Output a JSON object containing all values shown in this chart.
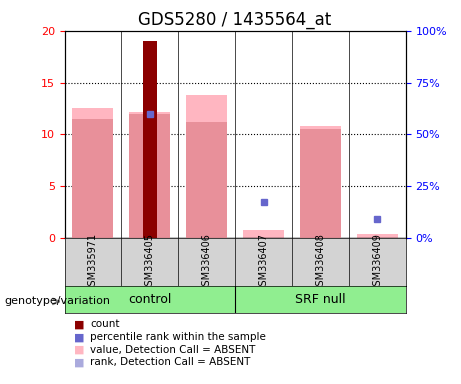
{
  "title": "GDS5280 / 1435564_at",
  "samples": [
    "GSM335971",
    "GSM336405",
    "GSM336406",
    "GSM336407",
    "GSM336408",
    "GSM336409"
  ],
  "groups": {
    "control": [
      "GSM335971",
      "GSM336405",
      "GSM336406"
    ],
    "SRF null": [
      "GSM336407",
      "GSM336408",
      "GSM336409"
    ]
  },
  "group_colors": {
    "control": "#90EE90",
    "SRF null": "#90EE90"
  },
  "ylim_left": [
    0,
    20
  ],
  "ylim_right": [
    0,
    100
  ],
  "yticks_left": [
    0,
    5,
    10,
    15,
    20
  ],
  "yticks_right": [
    0,
    25,
    50,
    75,
    100
  ],
  "ytick_labels_left": [
    "0",
    "5",
    "10",
    "15",
    "20"
  ],
  "ytick_labels_right": [
    "0%",
    "25%",
    "50%",
    "75%",
    "100%"
  ],
  "pink_bar_values": [
    12.5,
    12.2,
    13.8,
    0.8,
    10.8,
    0.4
  ],
  "pink_rank_values": [
    11.5,
    12.0,
    11.2,
    null,
    10.5,
    null
  ],
  "red_bar_values": [
    null,
    19.0,
    null,
    null,
    null,
    null
  ],
  "blue_square_values": [
    null,
    12.0,
    null,
    3.5,
    null,
    1.8
  ],
  "note_absent_pink": "value, Detection Call = ABSENT",
  "note_absent_blue": "rank, Detection Call = ABSENT",
  "note_count": "count",
  "note_percentile": "percentile rank within the sample",
  "bar_width": 0.4,
  "pink_color": "#FFB6C1",
  "pink_rank_color": "#D8A0B0",
  "red_color": "#8B0000",
  "blue_color": "#6666CC",
  "light_blue_color": "#AAAADD",
  "background_plot": "#FFFFFF",
  "background_table": "#D3D3D3",
  "genotype_label": "genotype/variation",
  "title_fontsize": 12,
  "axis_label_fontsize": 9,
  "tick_fontsize": 8
}
